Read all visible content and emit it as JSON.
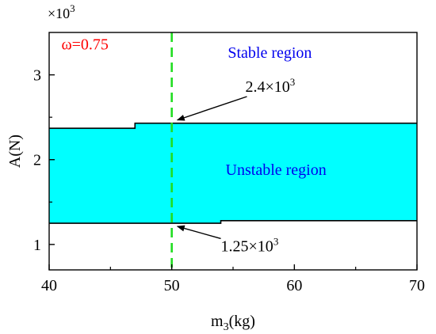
{
  "chart_data": {
    "type": "area",
    "title": "",
    "xlabel_main": "m",
    "xlabel_sub": "3",
    "xlabel_unit": "(kg)",
    "ylabel": "A(N)",
    "y_multiplier_base": "×10",
    "y_multiplier_exp": "3",
    "xlim": [
      40,
      70
    ],
    "ylim": [
      0.7,
      3.5
    ],
    "xticks": [
      40,
      50,
      60,
      70
    ],
    "yticks": [
      1,
      2,
      3
    ],
    "grid": false,
    "region_color": "#00FFFF",
    "upper_boundary": {
      "x": [
        40,
        47,
        47,
        70
      ],
      "y": [
        2.37,
        2.37,
        2.43,
        2.43
      ]
    },
    "lower_boundary": {
      "x": [
        40,
        54,
        54,
        70
      ],
      "y": [
        1.25,
        1.25,
        1.28,
        1.28
      ]
    },
    "vertical_line": {
      "x": 50,
      "color": "#22dd22",
      "style": "dashed"
    },
    "annotations": {
      "omega": {
        "text": "ω=0.75",
        "color": "#ff0000",
        "x": 41,
        "y": 3.3
      },
      "stable": {
        "text": "Stable region",
        "color": "#0000ee",
        "x": 58,
        "y": 3.2
      },
      "unstable": {
        "text": "Unstable region",
        "color": "#0000ee",
        "x": 58.5,
        "y": 1.82
      },
      "upper_value": {
        "base": "2.4×10",
        "exp": "3",
        "text_x": 56,
        "text_y": 2.8,
        "point_x": 50.2,
        "point_y": 2.43
      },
      "lower_value": {
        "base": "1.25×10",
        "exp": "3",
        "text_x": 54,
        "text_y": 0.92,
        "point_x": 50.2,
        "point_y": 1.25
      }
    }
  }
}
